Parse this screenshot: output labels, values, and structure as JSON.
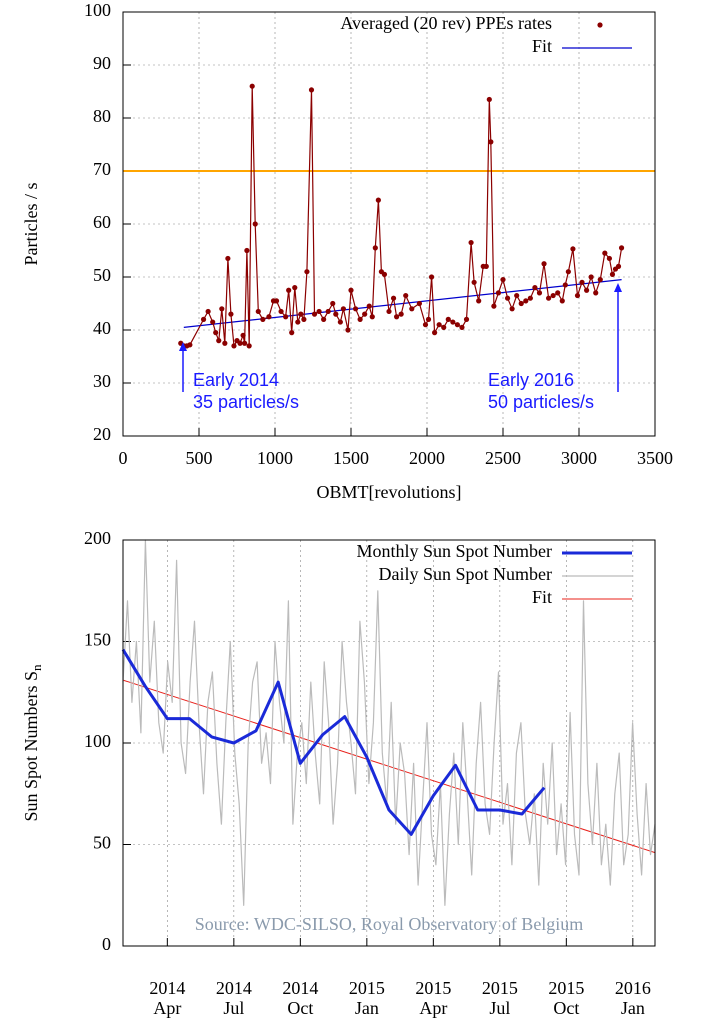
{
  "chart_data": [
    {
      "type": "line",
      "x_label": "OBMT[revolutions]",
      "y_label": "Particles / s",
      "xlim": [
        0,
        3500
      ],
      "xticks": [
        0,
        500,
        1000,
        1500,
        2000,
        2500,
        3000,
        3500
      ],
      "ylim": [
        20,
        100
      ],
      "yticks": [
        20,
        30,
        40,
        50,
        60,
        70,
        80,
        90,
        100
      ],
      "grid": true,
      "legend": "top-right",
      "hline": {
        "value": 70,
        "color": "#ffa500"
      },
      "series": [
        {
          "name": "Averaged (20 rev) PPEs rates",
          "color": "#8b0000",
          "marker": "dot",
          "x": [
            380,
            400,
            420,
            440,
            530,
            560,
            590,
            610,
            630,
            650,
            670,
            690,
            710,
            730,
            750,
            770,
            790,
            800,
            815,
            830,
            850,
            870,
            890,
            920,
            960,
            990,
            1010,
            1040,
            1070,
            1090,
            1110,
            1130,
            1150,
            1170,
            1190,
            1210,
            1240,
            1260,
            1290,
            1320,
            1350,
            1380,
            1400,
            1430,
            1450,
            1480,
            1500,
            1530,
            1560,
            1590,
            1620,
            1640,
            1660,
            1680,
            1700,
            1720,
            1750,
            1780,
            1800,
            1830,
            1860,
            1900,
            1950,
            1990,
            2010,
            2030,
            2050,
            2080,
            2110,
            2140,
            2170,
            2200,
            2230,
            2260,
            2290,
            2310,
            2340,
            2370,
            2390,
            2410,
            2420,
            2440,
            2470,
            2500,
            2530,
            2560,
            2590,
            2620,
            2650,
            2680,
            2710,
            2740,
            2770,
            2800,
            2830,
            2860,
            2890,
            2910,
            2930,
            2960,
            2990,
            3020,
            3050,
            3080,
            3110,
            3140,
            3170,
            3200,
            3220,
            3240,
            3260,
            3280
          ],
          "values": [
            37.5,
            37,
            37,
            37.2,
            42,
            43.5,
            41.5,
            39.5,
            38,
            44,
            37.5,
            53.5,
            43,
            37,
            38,
            37.5,
            39,
            37.5,
            55,
            37,
            86,
            60,
            43.5,
            42,
            42.5,
            45.5,
            45.5,
            43.5,
            42.5,
            47.5,
            39.5,
            48,
            41.5,
            43,
            42,
            51,
            85.3,
            43,
            43.5,
            42,
            43.5,
            45,
            43,
            41.5,
            44,
            40,
            47.5,
            44,
            42,
            43,
            44.5,
            42.5,
            55.5,
            64.5,
            51,
            50.5,
            43.5,
            46,
            42.5,
            43,
            46.5,
            44,
            45,
            41,
            42,
            50,
            39.5,
            41,
            40.5,
            42,
            41.5,
            41,
            40.5,
            42,
            56.5,
            49,
            45.5,
            52,
            52,
            83.5,
            75.5,
            44.5,
            47,
            49.5,
            46,
            44,
            46.5,
            45,
            45.5,
            46,
            48,
            47,
            52.5,
            46,
            46.5,
            47,
            45.5,
            48.5,
            51,
            55.3,
            46.5,
            49,
            47.5,
            50,
            47,
            49.5,
            54.5,
            53.5,
            50.5,
            51.5,
            52,
            55.5
          ]
        },
        {
          "name": "Fit",
          "color": "#0000cd",
          "x": [
            400,
            3280
          ],
          "values": [
            40.5,
            49.5
          ]
        }
      ],
      "annotations": [
        {
          "lines": [
            "Early 2014",
            "35 particles/s"
          ],
          "color": "#1a1aff"
        },
        {
          "lines": [
            "Early 2016",
            "50 particles/s"
          ],
          "color": "#1a1aff"
        }
      ]
    },
    {
      "type": "line",
      "y_label": {
        "text": "Sun Spot Numbers S",
        "subscript": "n"
      },
      "xlim": [
        "2014-02",
        "2016-02"
      ],
      "xticks": [
        {
          "value": "2014-04",
          "label": [
            "2014",
            "Apr"
          ]
        },
        {
          "value": "2014-07",
          "label": [
            "2014",
            "Jul"
          ]
        },
        {
          "value": "2014-10",
          "label": [
            "2014",
            "Oct"
          ]
        },
        {
          "value": "2015-01",
          "label": [
            "2015",
            "Jan"
          ]
        },
        {
          "value": "2015-04",
          "label": [
            "2015",
            "Apr"
          ]
        },
        {
          "value": "2015-07",
          "label": [
            "2015",
            "Jul"
          ]
        },
        {
          "value": "2015-10",
          "label": [
            "2015",
            "Oct"
          ]
        },
        {
          "value": "2016-01",
          "label": [
            "2016",
            "Jan"
          ]
        }
      ],
      "ylim": [
        0,
        200
      ],
      "yticks": [
        0,
        50,
        100,
        150,
        200
      ],
      "grid": true,
      "legend": "top-right",
      "series": [
        {
          "name": "Monthly Sun Spot Number",
          "color": "#1a2ad8",
          "width": 3,
          "x": [
            "2014-02",
            "2014-03",
            "2014-04",
            "2014-05",
            "2014-06",
            "2014-07",
            "2014-08",
            "2014-09",
            "2014-10",
            "2014-11",
            "2014-12",
            "2015-01",
            "2015-02",
            "2015-03",
            "2015-04",
            "2015-05",
            "2015-06",
            "2015-07",
            "2015-08",
            "2015-09"
          ],
          "values": [
            146,
            128,
            112,
            112,
            103,
            100,
            106,
            130,
            90,
            104,
            113,
            93,
            67,
            55,
            74,
            89,
            67,
            67,
            65,
            78
          ]
        },
        {
          "name": "Daily Sun Spot Number",
          "color": "#bbbbbb",
          "width": 1.2,
          "values": [
            130,
            170,
            120,
            150,
            105,
            200,
            130,
            160,
            110,
            95,
            140,
            120,
            190,
            100,
            85,
            130,
            160,
            110,
            75,
            120,
            135,
            90,
            60,
            110,
            150,
            95,
            70,
            20,
            100,
            130,
            140,
            90,
            105,
            80,
            150,
            120,
            100,
            170,
            60,
            95,
            110,
            80,
            130,
            95,
            70,
            140,
            110,
            60,
            90,
            150,
            120,
            100,
            75,
            160,
            130,
            80,
            110,
            175,
            95,
            70,
            120,
            60,
            100,
            85,
            45,
            90,
            30,
            70,
            110,
            55,
            40,
            80,
            20,
            65,
            95,
            50,
            110,
            75,
            35,
            90,
            120,
            70,
            55,
            100,
            135,
            60,
            80,
            40,
            95,
            110,
            65,
            50,
            75,
            30,
            90,
            60,
            100,
            45,
            70,
            40,
            115,
            55,
            35,
            170,
            80,
            50,
            90,
            40,
            60,
            30,
            75,
            95,
            40,
            55,
            110,
            65,
            35,
            80,
            45,
            60
          ]
        },
        {
          "name": "Fit",
          "color": "#e8201a",
          "width": 1,
          "x": [
            "2014-02",
            "2016-02"
          ],
          "values": [
            131,
            46
          ]
        }
      ],
      "source": "Source: WDC-SILSO, Royal Observatory of Belgium"
    }
  ]
}
